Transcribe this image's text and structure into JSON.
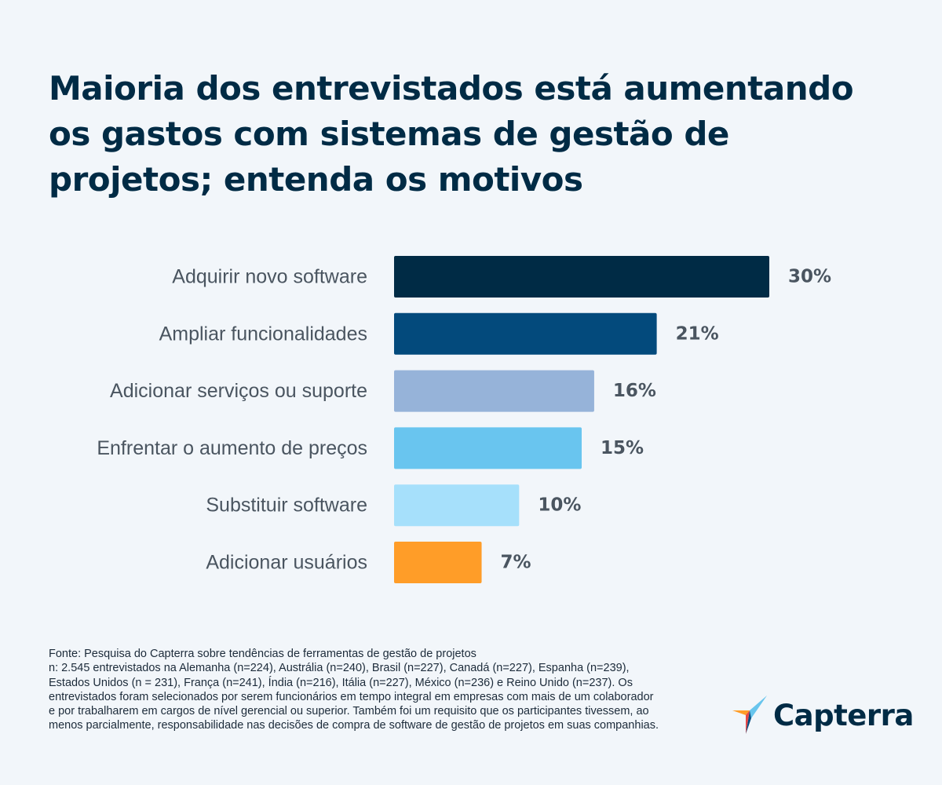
{
  "title": "Maioria dos entrevistados está aumentando os gastos com sistemas de gestão de projetos; entenda os motivos",
  "chart_data": {
    "type": "bar",
    "orientation": "horizontal",
    "categories": [
      "Adquirir novo software",
      "Ampliar funcionalidades",
      "Adicionar serviços ou suporte",
      "Enfrentar o aumento de preços",
      "Substituir software",
      "Adicionar usuários"
    ],
    "values": [
      30,
      21,
      16,
      15,
      10,
      7
    ],
    "value_labels": [
      "30%",
      "21%",
      "16%",
      "15%",
      "10%",
      "7%"
    ],
    "colors": [
      "#002b45",
      "#034a7c",
      "#96b3d9",
      "#69c5ef",
      "#a6e0fb",
      "#ff9d28"
    ],
    "xlim": [
      0,
      30
    ],
    "unit": "%"
  },
  "footnote": {
    "source": "Fonte: Pesquisa do Capterra sobre tendências de ferramentas de gestão de projetos",
    "sample": "n: 2.545 entrevistados na Alemanha (n=224), Austrália (n=240), Brasil (n=227), Canadá (n=227), Espanha (n=239), Estados Unidos (n = 231), França (n=241), Índia (n=216), Itália (n=227), México (n=236) e Reino Unido (n=237). Os entrevistados foram selecionados por serem funcionários em tempo integral em empresas com mais de um colaborador e por trabalharem em cargos de nível gerencial ou superior. Também foi um requisito que os participantes tivessem, ao menos parcialmente, responsabilidade nas decisões de compra de software de gestão de projetos em suas companhias."
  },
  "logo": {
    "text": "Capterra",
    "colors": [
      "#ff9d28",
      "#68c5ed",
      "#044d80",
      "#e54747"
    ]
  }
}
